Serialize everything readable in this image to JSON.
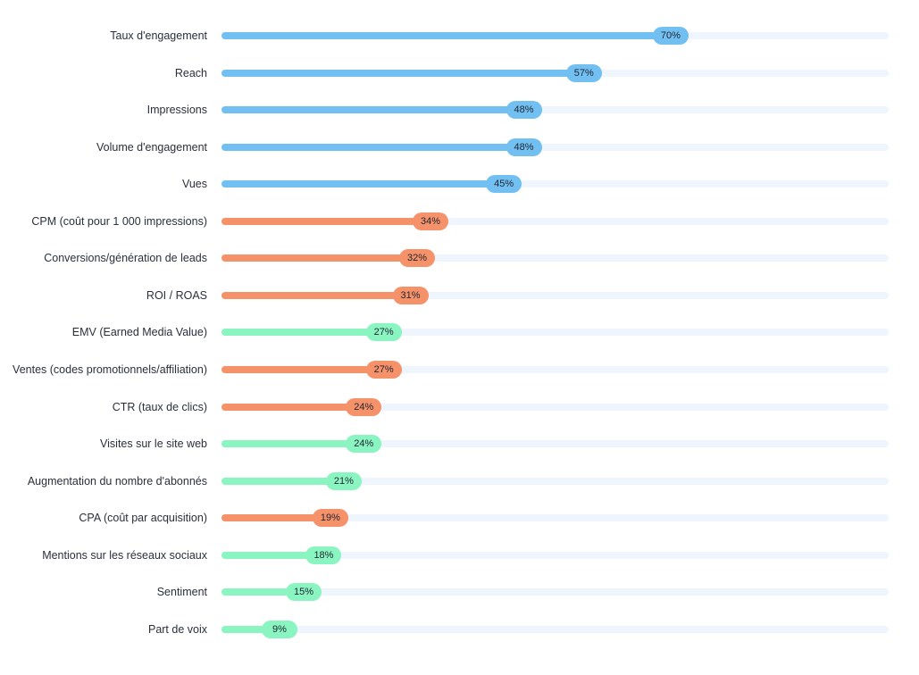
{
  "colors": {
    "blue": "#72c0f2",
    "orange": "#f5926a",
    "green": "#8af5c0",
    "track": "#eef5fc"
  },
  "chart_data": {
    "type": "bar",
    "orientation": "horizontal",
    "xlim": [
      0,
      100
    ],
    "grid": false,
    "categories": [
      "Taux d'engagement",
      "Reach",
      "Impressions",
      "Volume d'engagement",
      "Vues",
      "CPM (coût pour 1 000 impressions)",
      "Conversions/génération de leads",
      "ROI / ROAS",
      "EMV (Earned Media Value)",
      "Ventes (codes promotionnels/affiliation)",
      "CTR (taux de clics)",
      "Visites sur le site web",
      "Augmentation du nombre d'abonnés",
      "CPA (coût par acquisition)",
      "Mentions sur les réseaux sociaux",
      "Sentiment",
      "Part de voix"
    ],
    "values": [
      70,
      57,
      48,
      48,
      45,
      34,
      32,
      31,
      27,
      27,
      24,
      24,
      21,
      19,
      18,
      15,
      9
    ],
    "value_labels": [
      "70%",
      "57%",
      "48%",
      "48%",
      "45%",
      "34%",
      "32%",
      "31%",
      "27%",
      "27%",
      "24%",
      "24%",
      "21%",
      "19%",
      "18%",
      "15%",
      "9%"
    ],
    "bar_colors": [
      "blue",
      "blue",
      "blue",
      "blue",
      "blue",
      "orange",
      "orange",
      "orange",
      "green",
      "orange",
      "orange",
      "green",
      "green",
      "orange",
      "green",
      "green",
      "green"
    ]
  }
}
